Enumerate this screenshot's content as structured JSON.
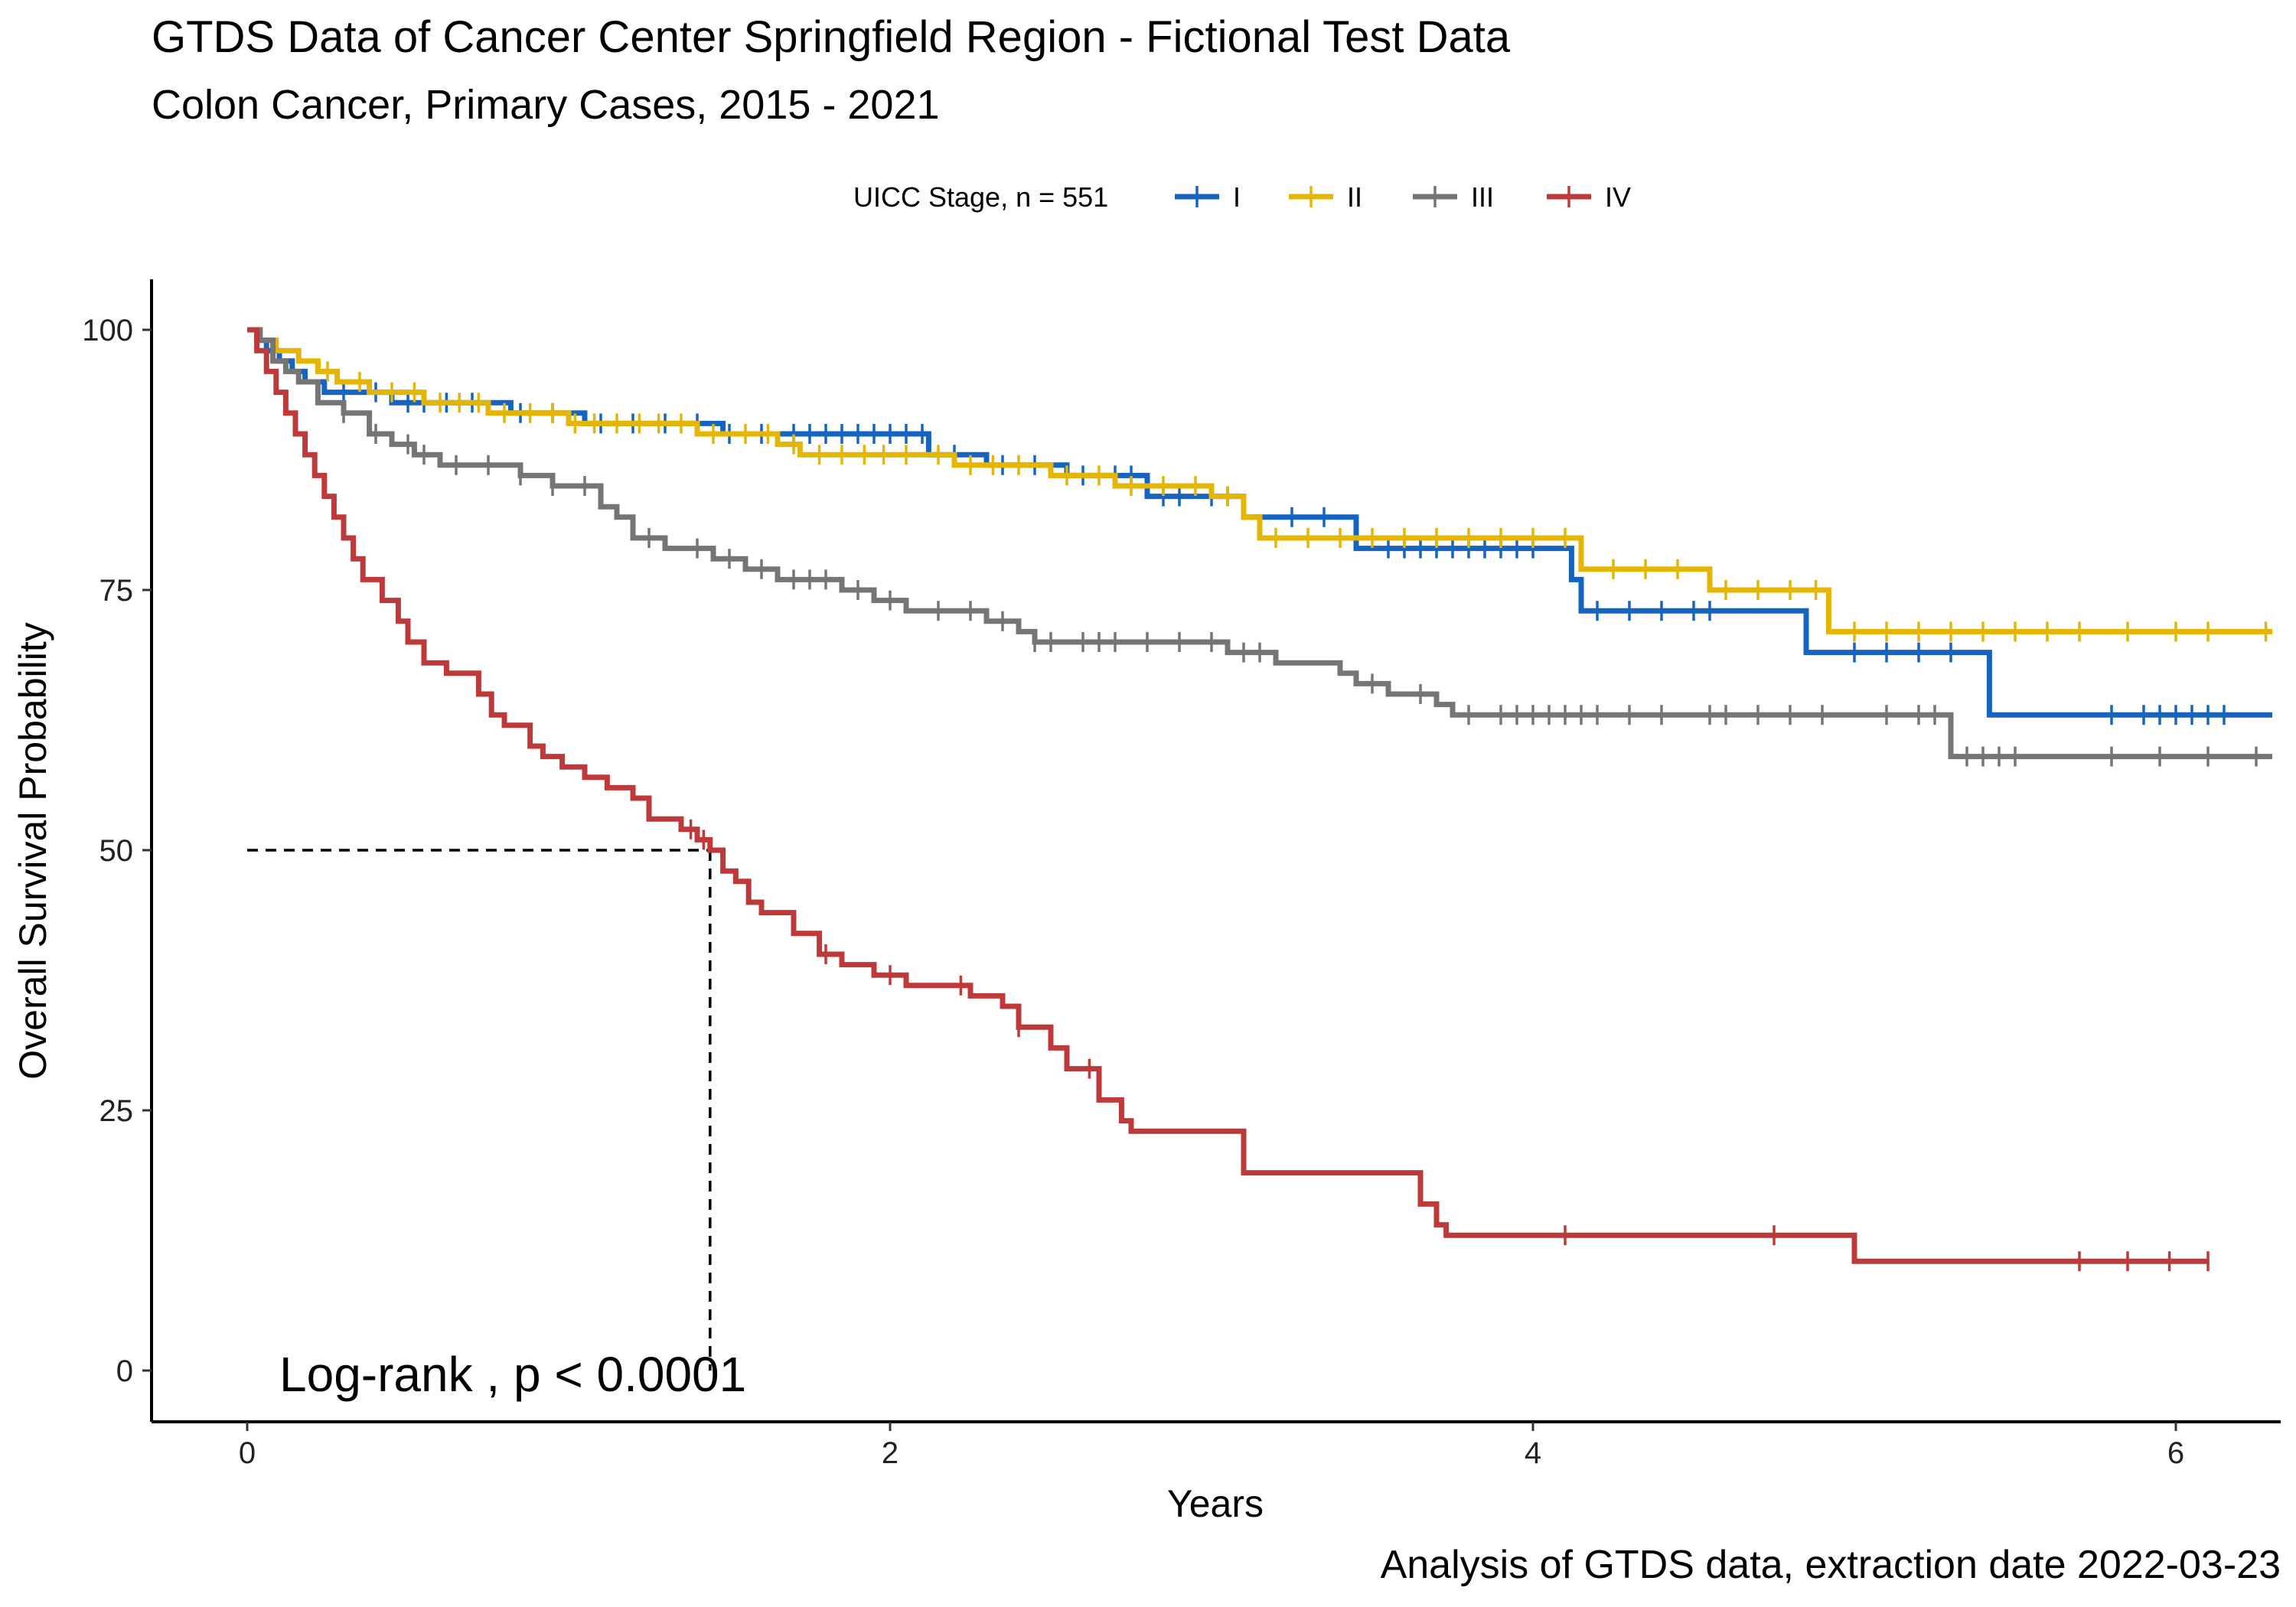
{
  "chart_data": {
    "type": "line",
    "title": "GTDS Data of Cancer Center Springfield Region - Fictional Test Data",
    "subtitle": "Colon Cancer, Primary Cases, 2015 - 2021",
    "xlabel": "Years",
    "ylabel": "Overall Survival Probability",
    "caption": "Analysis of GTDS data, extraction date  2022-03-23",
    "annotation": "Log-rank ,  p < 0.0001",
    "legend": {
      "title": "UICC Stage, n = 551",
      "position": "top"
    },
    "xlim": [
      -0.3,
      6.3
    ],
    "ylim": [
      -5,
      105
    ],
    "x_ticks": [
      0,
      2,
      4,
      6
    ],
    "y_ticks": [
      0,
      25,
      50,
      75,
      100
    ],
    "x_tick_labels": [
      "0",
      "2",
      "4",
      "6"
    ],
    "y_tick_labels": [
      "0",
      "25",
      "50",
      "75",
      "100"
    ],
    "grid": false,
    "median_survival_reference": {
      "y": 50,
      "x": 1.44
    },
    "series": [
      {
        "name": "I",
        "color": "#1565C0",
        "steps": [
          [
            0,
            100
          ],
          [
            0.03,
            99
          ],
          [
            0.06,
            98
          ],
          [
            0.1,
            97
          ],
          [
            0.14,
            96
          ],
          [
            0.18,
            95
          ],
          [
            0.24,
            94
          ],
          [
            0.45,
            93
          ],
          [
            0.82,
            92
          ],
          [
            1.05,
            91
          ],
          [
            1.48,
            90
          ],
          [
            2.12,
            88
          ],
          [
            2.3,
            87
          ],
          [
            2.55,
            86
          ],
          [
            2.8,
            84
          ],
          [
            3.1,
            82
          ],
          [
            3.45,
            79
          ],
          [
            4.12,
            76
          ],
          [
            4.15,
            73
          ],
          [
            4.85,
            69
          ],
          [
            5.42,
            63
          ],
          [
            6.3,
            63
          ]
        ],
        "censor_x": [
          0.3,
          0.4,
          0.5,
          0.55,
          0.62,
          0.7,
          0.85,
          0.95,
          1.1,
          1.2,
          1.3,
          1.4,
          1.5,
          1.6,
          1.7,
          1.75,
          1.8,
          1.85,
          1.9,
          1.95,
          2.0,
          2.05,
          2.1,
          2.2,
          2.35,
          2.45,
          2.6,
          2.7,
          2.75,
          2.85,
          2.9,
          3.0,
          3.05,
          3.25,
          3.35,
          3.55,
          3.6,
          3.65,
          3.7,
          3.75,
          3.8,
          3.85,
          3.9,
          3.95,
          4.0,
          4.2,
          4.3,
          4.4,
          4.5,
          4.55,
          5.0,
          5.1,
          5.2,
          5.3,
          5.8,
          5.9,
          5.95,
          6.0,
          6.05,
          6.1,
          6.15
        ]
      },
      {
        "name": "II",
        "color": "#E3B505",
        "steps": [
          [
            0,
            100
          ],
          [
            0.04,
            99
          ],
          [
            0.09,
            98
          ],
          [
            0.16,
            97
          ],
          [
            0.22,
            96
          ],
          [
            0.28,
            95
          ],
          [
            0.38,
            94
          ],
          [
            0.55,
            93
          ],
          [
            0.75,
            92
          ],
          [
            1.0,
            91
          ],
          [
            1.4,
            90
          ],
          [
            1.65,
            89
          ],
          [
            1.72,
            88
          ],
          [
            2.2,
            87
          ],
          [
            2.5,
            86
          ],
          [
            2.7,
            85
          ],
          [
            3.0,
            84
          ],
          [
            3.1,
            82
          ],
          [
            3.15,
            80
          ],
          [
            4.15,
            77
          ],
          [
            4.55,
            75
          ],
          [
            4.92,
            71
          ],
          [
            6.3,
            71
          ]
        ],
        "censor_x": [
          0.25,
          0.35,
          0.45,
          0.52,
          0.6,
          0.66,
          0.72,
          0.8,
          0.88,
          0.95,
          1.02,
          1.08,
          1.15,
          1.22,
          1.28,
          1.35,
          1.45,
          1.55,
          1.62,
          1.7,
          1.78,
          1.85,
          1.92,
          1.98,
          2.05,
          2.15,
          2.25,
          2.32,
          2.4,
          2.55,
          2.65,
          2.75,
          2.85,
          2.95,
          3.05,
          3.2,
          3.3,
          3.4,
          3.5,
          3.6,
          3.7,
          3.8,
          3.9,
          4.0,
          4.1,
          4.25,
          4.35,
          4.45,
          4.6,
          4.7,
          4.8,
          4.88,
          5.0,
          5.1,
          5.2,
          5.3,
          5.4,
          5.5,
          5.6,
          5.7,
          5.85,
          6.0,
          6.1,
          6.28
        ]
      },
      {
        "name": "III",
        "color": "#757575",
        "steps": [
          [
            0,
            100
          ],
          [
            0.04,
            99
          ],
          [
            0.08,
            97
          ],
          [
            0.12,
            96
          ],
          [
            0.16,
            95
          ],
          [
            0.22,
            93
          ],
          [
            0.3,
            92
          ],
          [
            0.38,
            90
          ],
          [
            0.45,
            89
          ],
          [
            0.52,
            88
          ],
          [
            0.6,
            87
          ],
          [
            0.85,
            86
          ],
          [
            0.95,
            85
          ],
          [
            1.1,
            83
          ],
          [
            1.15,
            82
          ],
          [
            1.2,
            80
          ],
          [
            1.3,
            79
          ],
          [
            1.45,
            78
          ],
          [
            1.55,
            77
          ],
          [
            1.65,
            76
          ],
          [
            1.85,
            75
          ],
          [
            1.95,
            74
          ],
          [
            2.05,
            73
          ],
          [
            2.3,
            72
          ],
          [
            2.4,
            71
          ],
          [
            2.45,
            70
          ],
          [
            3.05,
            69
          ],
          [
            3.2,
            68
          ],
          [
            3.4,
            67
          ],
          [
            3.45,
            66
          ],
          [
            3.55,
            65
          ],
          [
            3.7,
            64
          ],
          [
            3.75,
            63
          ],
          [
            5.3,
            59
          ],
          [
            6.3,
            59
          ]
        ],
        "censor_x": [
          0.3,
          0.4,
          0.5,
          0.55,
          0.65,
          0.75,
          0.85,
          0.95,
          1.05,
          1.25,
          1.4,
          1.5,
          1.6,
          1.7,
          1.75,
          1.8,
          1.9,
          2.0,
          2.15,
          2.25,
          2.35,
          2.45,
          2.5,
          2.6,
          2.65,
          2.7,
          2.8,
          2.9,
          3.0,
          3.1,
          3.15,
          3.5,
          3.65,
          3.8,
          3.9,
          3.95,
          4.0,
          4.05,
          4.1,
          4.15,
          4.2,
          4.3,
          4.4,
          4.55,
          4.6,
          4.7,
          4.8,
          4.9,
          5.1,
          5.2,
          5.25,
          5.35,
          5.4,
          5.45,
          5.5,
          5.8,
          5.95,
          6.1,
          6.25
        ]
      },
      {
        "name": "IV",
        "color": "#BE3A3A",
        "steps": [
          [
            0,
            100
          ],
          [
            0.03,
            98
          ],
          [
            0.06,
            96
          ],
          [
            0.09,
            94
          ],
          [
            0.12,
            92
          ],
          [
            0.15,
            90
          ],
          [
            0.18,
            88
          ],
          [
            0.21,
            86
          ],
          [
            0.24,
            84
          ],
          [
            0.27,
            82
          ],
          [
            0.3,
            80
          ],
          [
            0.33,
            78
          ],
          [
            0.36,
            76
          ],
          [
            0.42,
            74
          ],
          [
            0.47,
            72
          ],
          [
            0.5,
            70
          ],
          [
            0.55,
            68
          ],
          [
            0.62,
            67
          ],
          [
            0.72,
            65
          ],
          [
            0.76,
            63
          ],
          [
            0.8,
            62
          ],
          [
            0.88,
            60
          ],
          [
            0.92,
            59
          ],
          [
            0.98,
            58
          ],
          [
            1.05,
            57
          ],
          [
            1.12,
            56
          ],
          [
            1.2,
            55
          ],
          [
            1.25,
            53
          ],
          [
            1.35,
            52
          ],
          [
            1.4,
            51
          ],
          [
            1.44,
            50
          ],
          [
            1.48,
            48
          ],
          [
            1.52,
            47
          ],
          [
            1.56,
            45
          ],
          [
            1.6,
            44
          ],
          [
            1.7,
            42
          ],
          [
            1.78,
            40
          ],
          [
            1.85,
            39
          ],
          [
            1.95,
            38
          ],
          [
            2.05,
            37
          ],
          [
            2.25,
            36
          ],
          [
            2.35,
            35
          ],
          [
            2.4,
            33
          ],
          [
            2.5,
            31
          ],
          [
            2.55,
            29
          ],
          [
            2.65,
            26
          ],
          [
            2.72,
            24
          ],
          [
            2.75,
            23
          ],
          [
            3.1,
            19
          ],
          [
            3.65,
            16
          ],
          [
            3.7,
            14
          ],
          [
            3.73,
            13
          ],
          [
            5.0,
            10.5
          ],
          [
            6.1,
            10.5
          ]
        ],
        "censor_x": [
          1.38,
          1.42,
          1.8,
          2.0,
          2.22,
          2.4,
          2.62,
          4.1,
          4.75,
          5.7,
          5.85,
          5.98,
          6.1
        ]
      }
    ]
  }
}
